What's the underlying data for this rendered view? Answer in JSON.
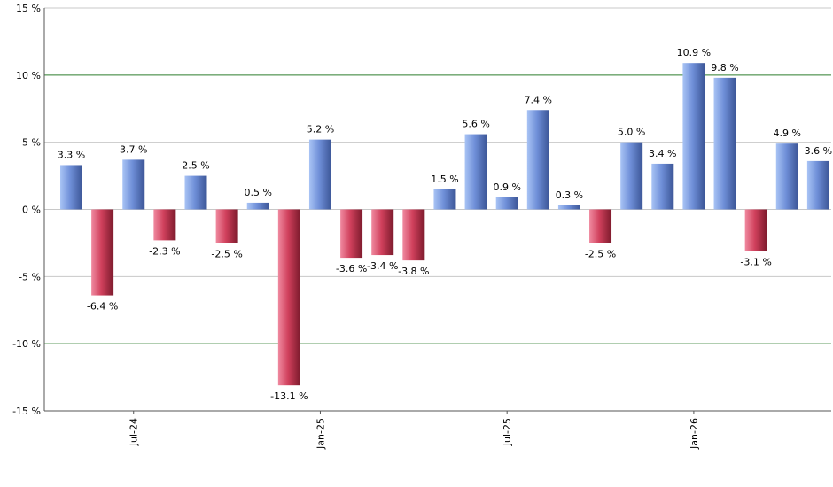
{
  "chart_data": {
    "type": "bar",
    "title": "",
    "xlabel": "",
    "ylabel": "",
    "ylim": [
      -15,
      15
    ],
    "yticks": [
      15,
      10,
      5,
      0,
      -5,
      -10,
      -15
    ],
    "ytick_labels": [
      "15 %",
      "10 %",
      "5 %",
      "0 %",
      "-5 %",
      "-10 %",
      "-15 %"
    ],
    "highlighted_gridlines": [
      10,
      -10
    ],
    "x_tick_labels": [
      {
        "label": "Jul-24",
        "index": 2
      },
      {
        "label": "Jan-25",
        "index": 8
      },
      {
        "label": "Jul-25",
        "index": 14
      },
      {
        "label": "Jan-26",
        "index": 20
      }
    ],
    "values": [
      3.3,
      -6.4,
      3.7,
      -2.3,
      2.5,
      -2.5,
      0.5,
      -13.1,
      5.2,
      -3.6,
      -3.4,
      -3.8,
      1.5,
      5.6,
      0.9,
      7.4,
      0.3,
      -2.5,
      5.0,
      3.4,
      10.9,
      9.8,
      -3.1,
      4.9,
      3.6
    ],
    "value_labels": [
      "3.3 %",
      "-6.4 %",
      "3.7 %",
      "-2.3 %",
      "2.5 %",
      "-2.5 %",
      "0.5 %",
      "-13.1 %",
      "5.2 %",
      "-3.6 %",
      "-3.4 %",
      "-3.8 %",
      "1.5 %",
      "5.6 %",
      "0.9 %",
      "7.4 %",
      "0.3 %",
      "-2.5 %",
      "5.0 %",
      "3.4 %",
      "10.9 %",
      "9.8 %",
      "-3.1 %",
      "4.9 %",
      "3.6 %"
    ],
    "colors": {
      "positive_light": "#a9c4f5",
      "positive_mid": "#6f8fd8",
      "positive_dark": "#3b5596",
      "negative_light": "#f08aa0",
      "negative_mid": "#d0405c",
      "negative_dark": "#7c1a2c",
      "grid": "#c8c8c8",
      "grid_highlight": "#2e7d2e",
      "axis": "#555555"
    },
    "grid": true,
    "legend": "none"
  }
}
